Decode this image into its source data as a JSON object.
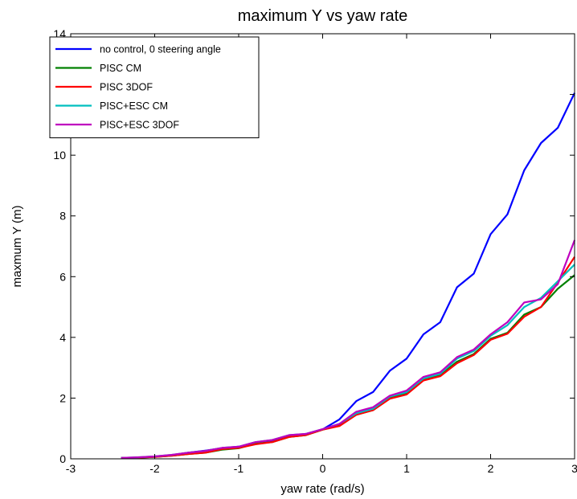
{
  "chart_data": {
    "type": "line",
    "title": "maximum Y vs yaw rate",
    "xlabel": "yaw rate (rad/s)",
    "ylabel": "maxmum Y (m)",
    "xlim": [
      -3,
      3
    ],
    "ylim": [
      0,
      14
    ],
    "xticks": [
      -3,
      -2,
      -1,
      0,
      1,
      2,
      3
    ],
    "yticks": [
      0,
      2,
      4,
      6,
      8,
      10,
      12,
      14
    ],
    "grid": false,
    "legend_position": "top-left",
    "series": [
      {
        "name": "no control, 0 steering angle",
        "color": "#0000ff",
        "x": [
          -2.4,
          -2.2,
          -2.0,
          -1.8,
          -1.6,
          -1.4,
          -1.2,
          -1.0,
          -0.8,
          -0.6,
          -0.4,
          -0.2,
          0.0,
          0.2,
          0.4,
          0.6,
          0.8,
          1.0,
          1.2,
          1.4,
          1.6,
          1.8,
          2.0,
          2.2,
          2.4,
          2.6,
          2.8,
          3.0
        ],
        "y": [
          0.03,
          0.04,
          0.07,
          0.12,
          0.2,
          0.27,
          0.35,
          0.4,
          0.5,
          0.58,
          0.75,
          0.82,
          0.97,
          1.3,
          1.9,
          2.2,
          2.9,
          3.3,
          4.1,
          4.5,
          5.65,
          6.1,
          7.4,
          8.05,
          9.5,
          10.4,
          10.9,
          12.05
        ]
      },
      {
        "name": "PISC CM",
        "color": "#008000",
        "x": [
          -2.4,
          -2.2,
          -2.0,
          -1.8,
          -1.6,
          -1.4,
          -1.2,
          -1.0,
          -0.8,
          -0.6,
          -0.4,
          -0.2,
          0.0,
          0.2,
          0.4,
          0.6,
          0.8,
          1.0,
          1.2,
          1.4,
          1.6,
          1.8,
          2.0,
          2.2,
          2.4,
          2.6,
          2.8,
          3.0
        ],
        "y": [
          0.03,
          0.04,
          0.06,
          0.1,
          0.16,
          0.2,
          0.3,
          0.35,
          0.5,
          0.55,
          0.72,
          0.78,
          0.96,
          1.1,
          1.45,
          1.6,
          2.0,
          2.15,
          2.6,
          2.75,
          3.2,
          3.45,
          3.95,
          4.15,
          4.75,
          5.0,
          5.6,
          6.05
        ]
      },
      {
        "name": "PISC 3DOF",
        "color": "#ff0000",
        "x": [
          -2.4,
          -2.2,
          -2.0,
          -1.8,
          -1.6,
          -1.4,
          -1.2,
          -1.0,
          -0.8,
          -0.6,
          -0.4,
          -0.2,
          0.0,
          0.2,
          0.4,
          0.6,
          0.8,
          1.0,
          1.2,
          1.4,
          1.6,
          1.8,
          2.0,
          2.2,
          2.4,
          2.6,
          2.8,
          3.0
        ],
        "y": [
          0.03,
          0.04,
          0.06,
          0.1,
          0.16,
          0.2,
          0.32,
          0.36,
          0.48,
          0.55,
          0.72,
          0.78,
          0.96,
          1.08,
          1.45,
          1.6,
          1.98,
          2.12,
          2.58,
          2.72,
          3.15,
          3.42,
          3.92,
          4.12,
          4.68,
          5.0,
          5.8,
          6.65
        ]
      },
      {
        "name": "PISC+ESC CM",
        "color": "#00bfbf",
        "x": [
          -2.4,
          -2.2,
          -2.0,
          -1.8,
          -1.6,
          -1.4,
          -1.2,
          -1.0,
          -0.8,
          -0.6,
          -0.4,
          -0.2,
          0.0,
          0.2,
          0.4,
          0.6,
          0.8,
          1.0,
          1.2,
          1.4,
          1.6,
          1.8,
          2.0,
          2.2,
          2.4,
          2.6,
          2.8,
          3.0
        ],
        "y": [
          0.03,
          0.05,
          0.08,
          0.13,
          0.2,
          0.26,
          0.36,
          0.4,
          0.55,
          0.62,
          0.78,
          0.82,
          0.98,
          1.15,
          1.5,
          1.65,
          2.05,
          2.2,
          2.65,
          2.8,
          3.3,
          3.55,
          4.05,
          4.4,
          5.0,
          5.3,
          5.85,
          6.4
        ]
      },
      {
        "name": "PISC+ESC 3DOF",
        "color": "#bf00bf",
        "x": [
          -2.4,
          -2.2,
          -2.0,
          -1.8,
          -1.6,
          -1.4,
          -1.2,
          -1.0,
          -0.8,
          -0.6,
          -0.4,
          -0.2,
          0.0,
          0.2,
          0.4,
          0.6,
          0.8,
          1.0,
          1.2,
          1.4,
          1.6,
          1.8,
          2.0,
          2.2,
          2.4,
          2.6,
          2.8,
          3.0
        ],
        "y": [
          0.03,
          0.05,
          0.08,
          0.13,
          0.2,
          0.26,
          0.36,
          0.4,
          0.55,
          0.62,
          0.78,
          0.82,
          0.98,
          1.15,
          1.55,
          1.7,
          2.08,
          2.25,
          2.7,
          2.85,
          3.35,
          3.6,
          4.1,
          4.5,
          5.15,
          5.25,
          5.75,
          7.2
        ]
      }
    ]
  }
}
